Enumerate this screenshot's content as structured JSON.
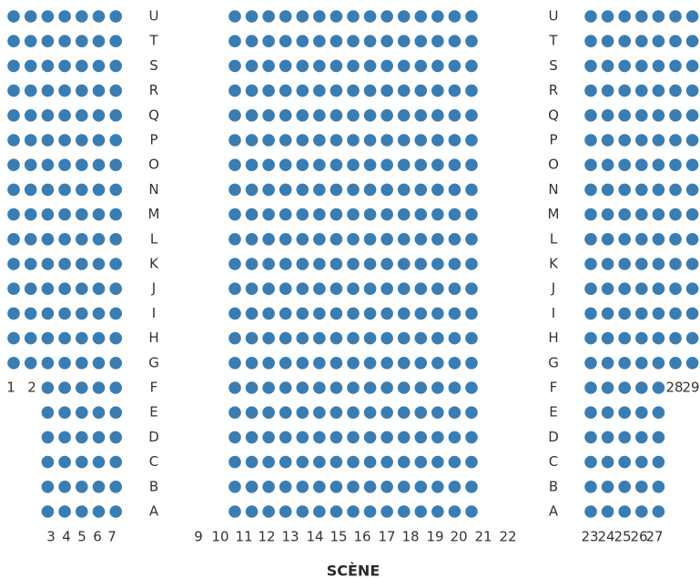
{
  "rows": [
    "U",
    "T",
    "S",
    "R",
    "Q",
    "P",
    "O",
    "N",
    "M",
    "L",
    "K",
    "J",
    "I",
    "H",
    "G",
    "F",
    "E",
    "D",
    "C",
    "B",
    "A"
  ],
  "row_f_left": [
    "1",
    "2"
  ],
  "row_f_right": [
    "28",
    "29"
  ],
  "bottom_numbers": {
    "left": [
      "3",
      "4",
      "5",
      "6",
      "7"
    ],
    "center": [
      "9",
      "10",
      "11",
      "12",
      "13",
      "14",
      "15",
      "16",
      "17",
      "18",
      "19",
      "20",
      "21",
      "22"
    ],
    "right": [
      "23",
      "24",
      "25",
      "26",
      "27"
    ]
  },
  "stage": "SCÈNE"
}
